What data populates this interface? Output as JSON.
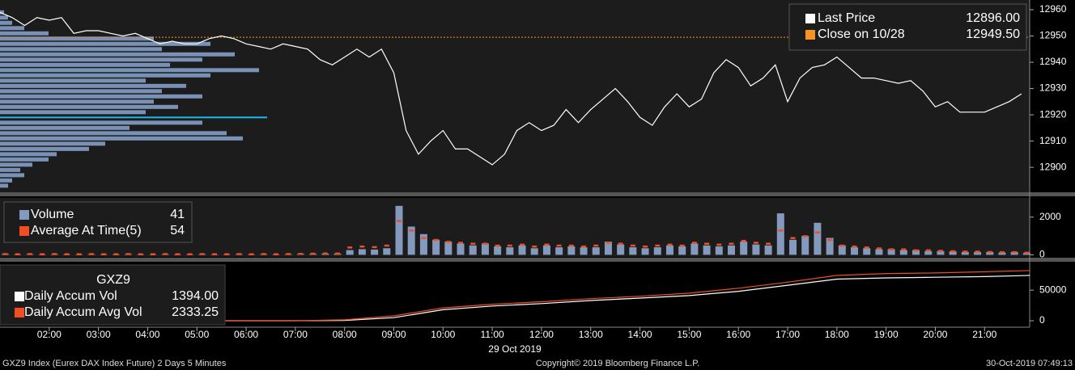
{
  "chart_data": [
    {
      "type": "line",
      "xlim": [
        "01:00",
        "21:55"
      ],
      "x": [
        "01:00",
        "01:15",
        "01:30",
        "01:45",
        "02:00",
        "02:15",
        "02:30",
        "02:45",
        "03:00",
        "03:15",
        "03:30",
        "03:45",
        "04:00",
        "04:15",
        "04:30",
        "04:45",
        "05:00",
        "05:15",
        "05:30",
        "05:45",
        "06:00",
        "06:15",
        "06:30",
        "06:45",
        "07:00",
        "07:15",
        "07:30",
        "07:45",
        "08:00",
        "08:15",
        "08:30",
        "08:45",
        "09:00",
        "09:15",
        "09:30",
        "09:45",
        "10:00",
        "10:15",
        "10:30",
        "10:45",
        "11:00",
        "11:15",
        "11:30",
        "11:45",
        "12:00",
        "12:15",
        "12:30",
        "12:45",
        "13:00",
        "13:15",
        "13:30",
        "13:45",
        "14:00",
        "14:15",
        "14:30",
        "14:45",
        "15:00",
        "15:15",
        "15:30",
        "15:45",
        "16:00",
        "16:15",
        "16:30",
        "16:45",
        "17:00",
        "17:15",
        "17:30",
        "17:45",
        "18:00",
        "18:15",
        "18:30",
        "18:45",
        "19:00",
        "19:15",
        "19:30",
        "19:45",
        "20:00",
        "20:15",
        "20:30",
        "20:45",
        "21:00",
        "21:15",
        "21:30",
        "21:45"
      ],
      "series": [
        {
          "name": "Last Price",
          "color": "#ffffff",
          "legend_value": "12896.00",
          "values": [
            12959,
            12957,
            12954,
            12957,
            12956,
            12957,
            12951,
            12952,
            12952,
            12951,
            12950,
            12951,
            12949,
            12947,
            12948,
            12947,
            12947,
            12949,
            12950,
            12949,
            12947,
            12946,
            12945,
            12947,
            12946,
            12945,
            12941,
            12939,
            12942,
            12945,
            12942,
            12945,
            12936,
            12914,
            12905,
            12910,
            12914,
            12907,
            12907,
            12904,
            12901,
            12905,
            12914,
            12917,
            12914,
            12916,
            12922,
            12917,
            12922,
            12926,
            12930,
            12925,
            12919,
            12916,
            12923,
            12928,
            12923,
            12926,
            12936,
            12941,
            12938,
            12931,
            12934,
            12939,
            12925,
            12934,
            12938,
            12939,
            12942,
            12938,
            12934,
            12934,
            12933,
            12932,
            12933,
            12929,
            12923,
            12925,
            12921,
            12921,
            12921,
            12923,
            12925,
            12928
          ]
        }
      ],
      "reference_lines": [
        {
          "name": "Close on 10/28",
          "color": "#f7941d",
          "value": 12949.5,
          "label": "12949.50"
        }
      ],
      "volume_profile": {
        "color": "#7a91b6",
        "highlight_level": 12919,
        "highlight_color": "#1fb8e8",
        "levels": [
          12959,
          12957,
          12955,
          12953,
          12951,
          12949,
          12947,
          12945,
          12943,
          12941,
          12939,
          12937,
          12935,
          12933,
          12931,
          12929,
          12927,
          12925,
          12923,
          12921,
          12919,
          12917,
          12915,
          12913,
          12911,
          12909,
          12907,
          12905,
          12903,
          12901,
          12899,
          12897,
          12895,
          12893
        ],
        "values": [
          5,
          10,
          15,
          30,
          60,
          190,
          260,
          200,
          290,
          250,
          210,
          320,
          260,
          180,
          230,
          200,
          250,
          190,
          220,
          180,
          330,
          250,
          160,
          280,
          300,
          130,
          110,
          70,
          60,
          40,
          25,
          30,
          15,
          10
        ]
      },
      "ylim": [
        12890.5,
        12963.7
      ],
      "yticks": [
        12900,
        12910,
        12920,
        12930,
        12940,
        12950,
        12960
      ]
    },
    {
      "type": "bar",
      "xlim": [
        "01:00",
        "21:55"
      ],
      "x": [
        "01:00",
        "01:15",
        "01:30",
        "01:45",
        "02:00",
        "02:15",
        "02:30",
        "02:45",
        "03:00",
        "03:15",
        "03:30",
        "03:45",
        "04:00",
        "04:15",
        "04:30",
        "04:45",
        "05:00",
        "05:15",
        "05:30",
        "05:45",
        "06:00",
        "06:15",
        "06:30",
        "06:45",
        "07:00",
        "07:15",
        "07:30",
        "07:45",
        "08:00",
        "08:15",
        "08:30",
        "08:45",
        "09:00",
        "09:15",
        "09:30",
        "09:45",
        "10:00",
        "10:15",
        "10:30",
        "10:45",
        "11:00",
        "11:15",
        "11:30",
        "11:45",
        "12:00",
        "12:15",
        "12:30",
        "12:45",
        "13:00",
        "13:15",
        "13:30",
        "13:45",
        "14:00",
        "14:15",
        "14:30",
        "14:45",
        "15:00",
        "15:15",
        "15:30",
        "15:45",
        "16:00",
        "16:15",
        "16:30",
        "16:45",
        "17:00",
        "17:15",
        "17:30",
        "17:45",
        "18:00",
        "18:15",
        "18:30",
        "18:45",
        "19:00",
        "19:15",
        "19:30",
        "19:45",
        "20:00",
        "20:15",
        "20:30",
        "20:45",
        "21:00",
        "21:15",
        "21:30",
        "21:45"
      ],
      "series": [
        {
          "name": "Volume",
          "color": "#8399bd",
          "legend_value": "41",
          "values": [
            40,
            20,
            30,
            20,
            30,
            20,
            20,
            30,
            20,
            20,
            30,
            20,
            20,
            30,
            20,
            20,
            30,
            20,
            20,
            30,
            20,
            30,
            20,
            30,
            40,
            50,
            60,
            60,
            250,
            300,
            280,
            350,
            2600,
            1500,
            1100,
            800,
            700,
            600,
            500,
            600,
            450,
            400,
            500,
            350,
            500,
            400,
            450,
            400,
            400,
            700,
            550,
            400,
            350,
            400,
            500,
            450,
            600,
            500,
            450,
            500,
            700,
            550,
            500,
            2200,
            800,
            1000,
            1700,
            900,
            500,
            400,
            350,
            300,
            300,
            250,
            250,
            200,
            200,
            180,
            150,
            150,
            150,
            120,
            150,
            100
          ]
        },
        {
          "name": "Average At Time(5)",
          "color": "#f04e23",
          "legend_value": "54",
          "values": [
            50,
            40,
            50,
            40,
            50,
            40,
            40,
            50,
            40,
            40,
            50,
            40,
            40,
            50,
            40,
            40,
            50,
            40,
            40,
            50,
            40,
            50,
            40,
            50,
            60,
            70,
            80,
            80,
            400,
            450,
            420,
            500,
            1800,
            1300,
            900,
            800,
            700,
            650,
            600,
            600,
            500,
            500,
            550,
            450,
            550,
            500,
            500,
            450,
            500,
            650,
            600,
            500,
            450,
            500,
            550,
            500,
            650,
            600,
            550,
            600,
            750,
            650,
            600,
            1300,
            900,
            1000,
            1200,
            800,
            500,
            450,
            400,
            350,
            300,
            300,
            250,
            250,
            220,
            200,
            180,
            180,
            160,
            150,
            150,
            120
          ]
        }
      ],
      "ylim": [
        -110,
        3020
      ],
      "yticks": [
        0,
        2000
      ]
    },
    {
      "type": "line",
      "title": "GXZ9",
      "xlim": [
        "01:00",
        "21:55"
      ],
      "x": [
        "01:00",
        "02:00",
        "03:00",
        "04:00",
        "05:00",
        "06:00",
        "07:00",
        "08:00",
        "09:00",
        "10:00",
        "11:00",
        "12:00",
        "13:00",
        "14:00",
        "15:00",
        "16:00",
        "17:00",
        "18:00",
        "19:00",
        "20:00",
        "21:00",
        "21:55"
      ],
      "series": [
        {
          "name": "Daily Accum Vol",
          "color": "#ffffff",
          "legend_value": "1394.00",
          "values": [
            0,
            0,
            0,
            0,
            0,
            0,
            0,
            500,
            5000,
            18000,
            24000,
            28000,
            33000,
            37000,
            41000,
            48000,
            58000,
            68000,
            70000,
            71000,
            72000,
            74000
          ]
        },
        {
          "name": "Daily Accum Avg Vol",
          "color": "#f04e23",
          "legend_value": "2333.25",
          "values": [
            0,
            0,
            0,
            0,
            0,
            0,
            0,
            1500,
            8000,
            21000,
            27000,
            31000,
            36000,
            40000,
            45000,
            53000,
            63000,
            74000,
            77000,
            78000,
            80000,
            82000
          ]
        }
      ],
      "ylim": [
        -10500,
        95000
      ],
      "yticks": [
        0,
        50000
      ],
      "xticks": [
        "02:00",
        "03:00",
        "04:00",
        "05:00",
        "06:00",
        "07:00",
        "08:00",
        "09:00",
        "10:00",
        "11:00",
        "12:00",
        "13:00",
        "14:00",
        "15:00",
        "16:00",
        "17:00",
        "18:00",
        "19:00",
        "20:00",
        "21:00"
      ],
      "xlabel": "29 Oct 2019"
    }
  ],
  "footer": {
    "left": "GXZ9 Index (Eurex DAX Index Future) 2 Days 5 Minutes",
    "center": "Copyright© 2019 Bloomberg Finance L.P.",
    "right": "30-Oct-2019 07:49:13"
  }
}
